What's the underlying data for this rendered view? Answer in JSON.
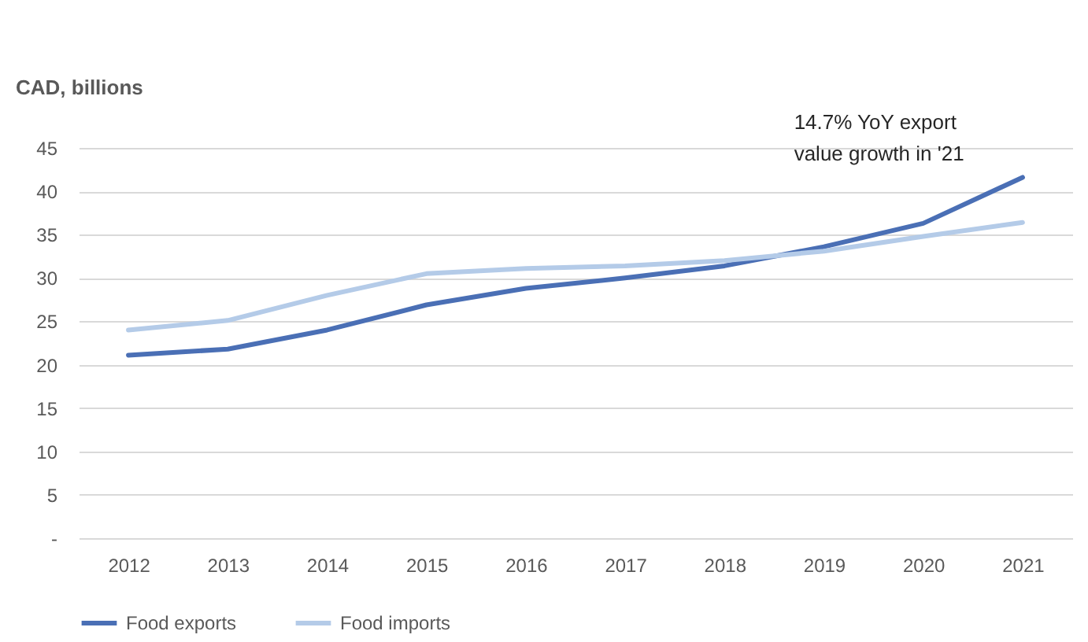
{
  "chart_data": {
    "type": "line",
    "ylabel": "CAD, billions",
    "categories": [
      "2012",
      "2013",
      "2014",
      "2015",
      "2016",
      "2017",
      "2018",
      "2019",
      "2020",
      "2021"
    ],
    "series": [
      {
        "name": "Food exports",
        "color": "#4a6fb5",
        "values": [
          21.1,
          21.8,
          24.0,
          26.9,
          28.8,
          30.0,
          31.4,
          33.6,
          36.3,
          41.6
        ]
      },
      {
        "name": "Food imports",
        "color": "#b4cbe8",
        "values": [
          24.0,
          25.1,
          28.0,
          30.5,
          31.1,
          31.4,
          32.0,
          33.1,
          34.8,
          36.4
        ]
      }
    ],
    "ylim": [
      0,
      45
    ],
    "yticks": [
      {
        "value": 0,
        "label": "-"
      },
      5,
      10,
      15,
      20,
      25,
      30,
      35,
      40,
      45
    ],
    "grid": "y",
    "legend": "bottom",
    "marker": "none",
    "line_style": "solid",
    "annotations": [
      "14.7% YoY export value growth in '21"
    ]
  }
}
